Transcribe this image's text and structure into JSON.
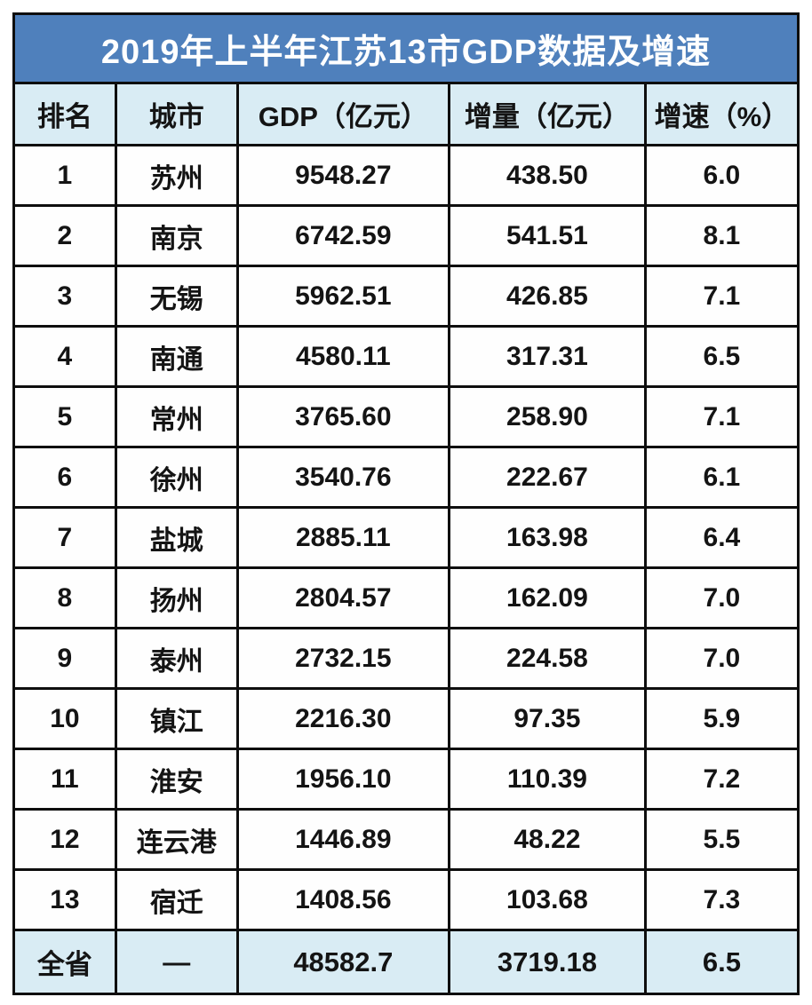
{
  "title": "2019年上半年江苏13市GDP数据及增速",
  "chart_data": {
    "type": "table",
    "title": "2019年上半年江苏13市GDP数据及增速",
    "columns": [
      "排名",
      "城市",
      "GDP（亿元）",
      "增量（亿元）",
      "增速（%）"
    ],
    "rows": [
      {
        "rank": "1",
        "city": "苏州",
        "gdp": "9548.27",
        "increase": "438.50",
        "growth": "6.0"
      },
      {
        "rank": "2",
        "city": "南京",
        "gdp": "6742.59",
        "increase": "541.51",
        "growth": "8.1"
      },
      {
        "rank": "3",
        "city": "无锡",
        "gdp": "5962.51",
        "increase": "426.85",
        "growth": "7.1"
      },
      {
        "rank": "4",
        "city": "南通",
        "gdp": "4580.11",
        "increase": "317.31",
        "growth": "6.5"
      },
      {
        "rank": "5",
        "city": "常州",
        "gdp": "3765.60",
        "increase": "258.90",
        "growth": "7.1"
      },
      {
        "rank": "6",
        "city": "徐州",
        "gdp": "3540.76",
        "increase": "222.67",
        "growth": "6.1"
      },
      {
        "rank": "7",
        "city": "盐城",
        "gdp": "2885.11",
        "increase": "163.98",
        "growth": "6.4"
      },
      {
        "rank": "8",
        "city": "扬州",
        "gdp": "2804.57",
        "increase": "162.09",
        "growth": "7.0"
      },
      {
        "rank": "9",
        "city": "泰州",
        "gdp": "2732.15",
        "increase": "224.58",
        "growth": "7.0"
      },
      {
        "rank": "10",
        "city": "镇江",
        "gdp": "2216.30",
        "increase": "97.35",
        "growth": "5.9"
      },
      {
        "rank": "11",
        "city": "淮安",
        "gdp": "1956.10",
        "increase": "110.39",
        "growth": "7.2"
      },
      {
        "rank": "12",
        "city": "连云港",
        "gdp": "1446.89",
        "increase": "48.22",
        "growth": "5.5"
      },
      {
        "rank": "13",
        "city": "宿迁",
        "gdp": "1408.56",
        "increase": "103.68",
        "growth": "7.3"
      }
    ],
    "footer": {
      "rank": "全省",
      "city": "—",
      "gdp": "48582.7",
      "increase": "3719.18",
      "growth": "6.5"
    }
  },
  "colors": {
    "banner_blue": "#4f80bc",
    "highlight_row_blue": "#d9ecf4",
    "grid_border": "#0e0e0e",
    "text": "#141414",
    "banner_text": "#ffffff"
  }
}
